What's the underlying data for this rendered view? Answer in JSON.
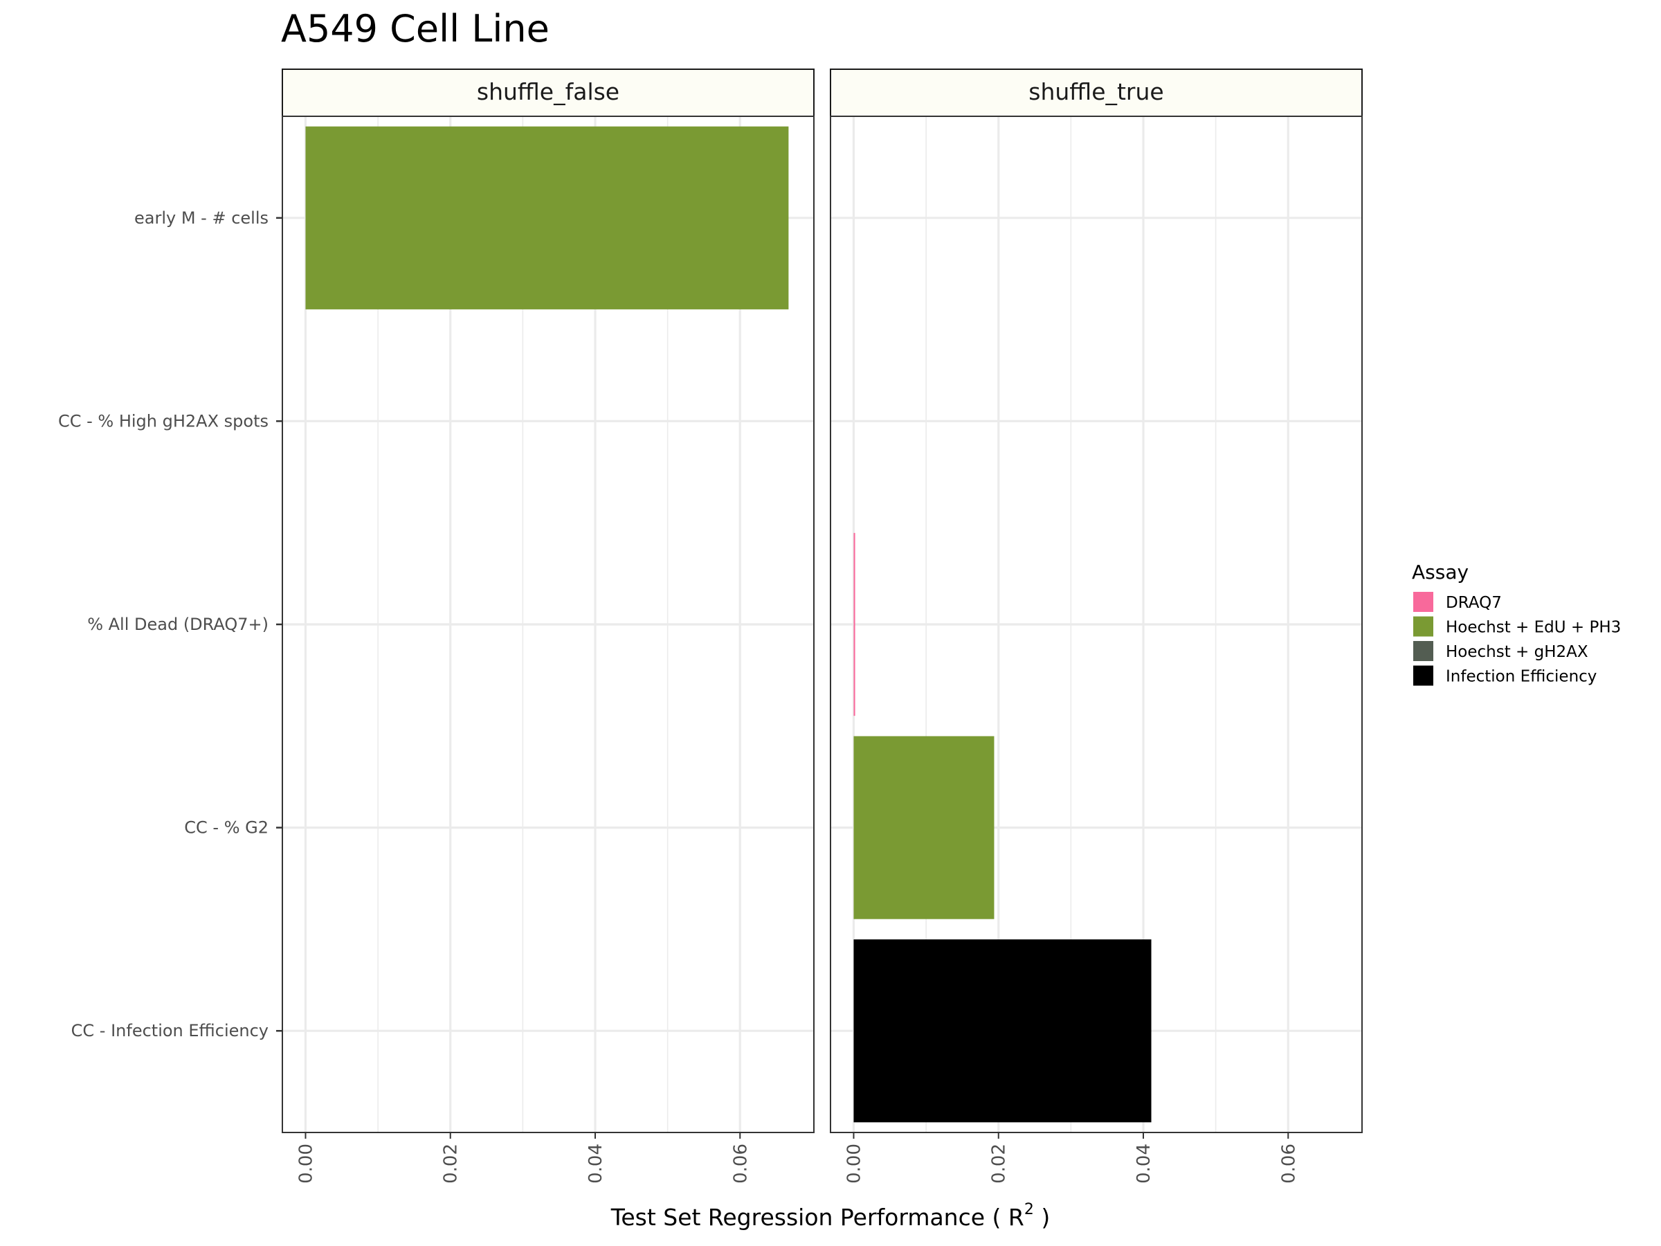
{
  "chart_data": {
    "type": "bar",
    "orientation": "horizontal",
    "title": "A549 Cell Line",
    "xlabel": "Test Set Regression Performance ( R² )",
    "xlabel_main": "Test Set Regression Performance ( R",
    "xlabel_sup": "2",
    "xlabel_end": " )",
    "ylabel": "",
    "xlim": [
      -0.0032,
      0.0702
    ],
    "xticks": [
      0.0,
      0.02,
      0.04,
      0.06
    ],
    "xtick_labels": [
      "0.00",
      "0.02",
      "0.04",
      "0.06"
    ],
    "grid": true,
    "legend_position": "right",
    "categories": [
      "early M - # cells",
      "CC - % High gH2AX spots",
      "% All Dead (DRAQ7+)",
      "CC - % G2",
      "CC - Infection Efficiency"
    ],
    "legend": {
      "title": "Assay",
      "entries": [
        {
          "name": "DRAQ7",
          "color": "#f8699b"
        },
        {
          "name": "Hoechst + EdU + PH3",
          "color": "#7a9a33"
        },
        {
          "name": "Hoechst + gH2AX",
          "color": "#535d52"
        },
        {
          "name": "Infection Efficiency",
          "color": "#000000"
        }
      ]
    },
    "facets": [
      {
        "label": "shuffle_false",
        "bars": [
          {
            "category": "early M - # cells",
            "value": 0.0667,
            "assay": "Hoechst + EdU + PH3"
          }
        ]
      },
      {
        "label": "shuffle_true",
        "bars": [
          {
            "category": "% All Dead (DRAQ7+)",
            "value": 0.0002,
            "assay": "DRAQ7"
          },
          {
            "category": "CC - % G2",
            "value": 0.0194,
            "assay": "Hoechst + EdU + PH3"
          },
          {
            "category": "CC - Infection Efficiency",
            "value": 0.0411,
            "assay": "Infection Efficiency"
          }
        ]
      }
    ]
  }
}
